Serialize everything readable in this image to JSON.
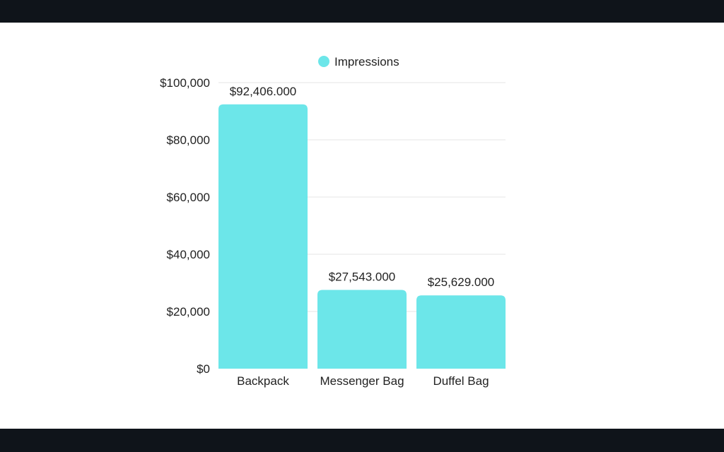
{
  "chart_data": {
    "type": "bar",
    "categories": [
      "Backpack",
      "Messenger Bag",
      "Duffel Bag"
    ],
    "series": [
      {
        "name": "Impressions",
        "values": [
          92406,
          27543,
          25629
        ],
        "value_labels": [
          "$92,406.000",
          "$27,543.000",
          "$25,629.000"
        ],
        "color": "#6ce6e9"
      }
    ],
    "ylim": [
      0,
      100000
    ],
    "yticks": [
      0,
      20000,
      40000,
      60000,
      80000,
      100000
    ],
    "ytick_labels": [
      "$0",
      "$20,000",
      "$40,000",
      "$60,000",
      "$80,000",
      "$100,000"
    ],
    "grid": true,
    "legend": "top-center",
    "title": "",
    "xlabel": "",
    "ylabel": ""
  }
}
